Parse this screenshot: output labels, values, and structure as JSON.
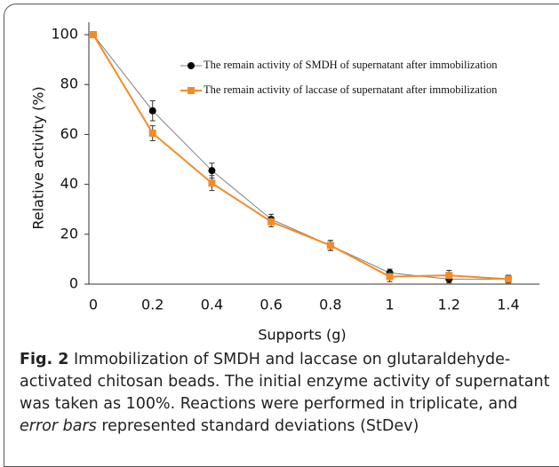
{
  "chart_data": {
    "type": "line",
    "x": [
      0,
      0.2,
      0.4,
      0.6,
      0.8,
      1,
      1.2,
      1.4
    ],
    "xlim": [
      -0.015,
      1.505
    ],
    "xticks": [
      0,
      0.2,
      0.4,
      0.6,
      0.8,
      1,
      1.2,
      1.4
    ],
    "ylim": [
      0,
      105
    ],
    "yticks": [
      0,
      20,
      40,
      60,
      80,
      100
    ],
    "x_label": "Supports (g)",
    "y_label": "Relative activity (%)",
    "grid": false,
    "series": [
      {
        "name": "The remain activity of SMDH of supernatant after immobilization",
        "color": "#000000",
        "marker": "circle",
        "line_color": "#808080",
        "values": [
          100,
          69.5,
          45.5,
          26,
          15.5,
          4.5,
          2,
          2
        ],
        "errors": [
          0,
          4,
          3,
          2,
          2,
          1.5,
          1.5,
          1.5
        ]
      },
      {
        "name": "The remain activity of laccase of supernatant after immobilization",
        "color": "#f28c28",
        "marker": "square",
        "line_color": "#f28c28",
        "values": [
          100,
          60.5,
          40.5,
          25,
          15.5,
          3,
          3.5,
          2
        ],
        "errors": [
          0,
          3,
          3,
          2,
          2,
          2,
          2,
          1.5
        ]
      }
    ]
  },
  "caption": {
    "label": "Fig. 2",
    "text": " Immobilization of SMDH and laccase on glutaraldehyde-activated chitosan beads. The initial enzyme activity of supernatant was taken as 100%. Reactions were performed in triplicate, and ",
    "italic": "error bars",
    "tail": " represented standard deviations (StDev)"
  }
}
